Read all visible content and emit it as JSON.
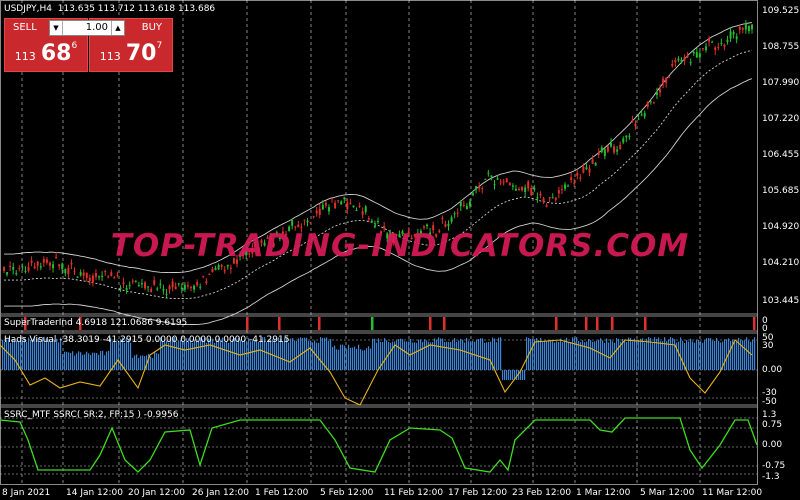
{
  "header": {
    "symbol_tf": "USDJPY,H4",
    "ohlc": "113.635 113.712 113.618 113.686"
  },
  "trade_panel": {
    "sell_label": "SELL",
    "buy_label": "BUY",
    "lot_value": "1.00",
    "sell_price": {
      "small": "113",
      "big": "68",
      "sup": "6"
    },
    "buy_price": {
      "small": "113",
      "big": "70",
      "sup": "7"
    },
    "down_arrow": "▼",
    "up_arrow": "▲"
  },
  "watermark": "TOP-TRADING-INDICATORS.COM",
  "price_axis": [
    "109.525",
    "108.755",
    "107.990",
    "107.220",
    "106.455",
    "105.685",
    "104.920",
    "104.210",
    "103.445"
  ],
  "time_axis": [
    "8 Jan 2021",
    "14 Jan 12:00",
    "20 Jan 12:00",
    "26 Jan 12:00",
    "1 Feb 12:00",
    "5 Feb 12:00",
    "11 Feb 12:00",
    "17 Feb 12:00",
    "23 Feb 12:00",
    "1 Mar 12:00",
    "5 Mar 12:00",
    "11 Mar 12:00"
  ],
  "sub1": {
    "title": "SuperTraderInd 4.6918 121.0686 9.6195",
    "axis_top": "0",
    "axis_bottom": "0"
  },
  "sub2": {
    "title": "Hads Visual -38.3019 -41.2915 0.0000 0.0000 0.0000 -41.2915",
    "axis": [
      "50",
      "30",
      "0.00",
      "-30",
      "-50"
    ]
  },
  "sub3": {
    "title": "SSRC_MTF  SSRC( SR:2, FP:15 ) -0.9956",
    "axis": [
      "1.3",
      "0.75",
      "0.00",
      "-0.75",
      "-1.3"
    ]
  },
  "colors": {
    "bull_candle": "#22c02e",
    "bear_candle": "#e0302a",
    "band": "#cfcfcf",
    "histogram": "#3b86d8",
    "hads_yellow": "#e7b41a",
    "ssrc_green": "#3fdc1f",
    "grid": "#ffffff",
    "panel_red": "#c9282d"
  },
  "icons": {
    "lot_down": "chevron-down-icon",
    "lot_up": "chevron-up-icon"
  }
}
